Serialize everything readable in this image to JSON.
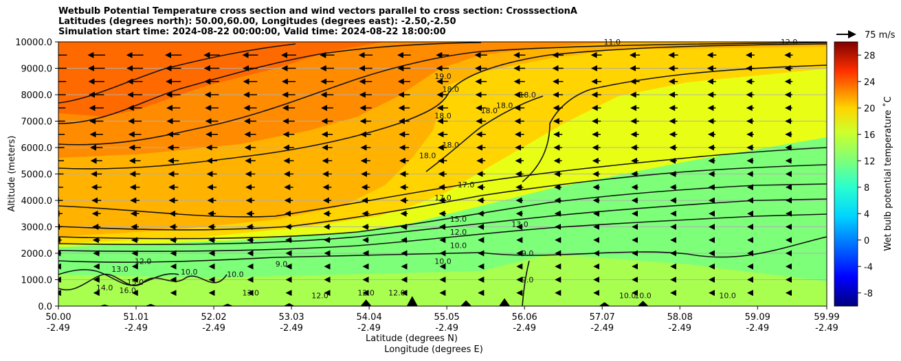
{
  "chart_data": {
    "type": "heatmap",
    "title_lines": [
      "Wetbulb Potential Temperature cross section and wind vectors parallel to cross section: CrosssectionA",
      "Latitudes (degrees north): 50.00,60.00, Longitudes (degrees east): -2.50,-2.50",
      "Simulation start time: 2024-08-22 00:00:00, Valid time: 2024-08-22 18:00:00"
    ],
    "xlabel_lines": [
      "Latitude (degrees N)",
      "Longitude (degrees E)"
    ],
    "ylabel": "Altitude (meters)",
    "x_ticks": [
      {
        "lat": "50.00",
        "lon": "-2.49"
      },
      {
        "lat": "51.01",
        "lon": "-2.49"
      },
      {
        "lat": "52.02",
        "lon": "-2.49"
      },
      {
        "lat": "53.03",
        "lon": "-2.49"
      },
      {
        "lat": "54.04",
        "lon": "-2.49"
      },
      {
        "lat": "55.05",
        "lon": "-2.49"
      },
      {
        "lat": "56.06",
        "lon": "-2.49"
      },
      {
        "lat": "57.07",
        "lon": "-2.49"
      },
      {
        "lat": "58.08",
        "lon": "-2.49"
      },
      {
        "lat": "59.09",
        "lon": "-2.49"
      },
      {
        "lat": "59.99",
        "lon": "-2.49"
      }
    ],
    "xlim": [
      50.0,
      59.99
    ],
    "y_ticks": [
      "0.0",
      "1000.0",
      "2000.0",
      "3000.0",
      "4000.0",
      "5000.0",
      "6000.0",
      "7000.0",
      "8000.0",
      "9000.0",
      "10000.0"
    ],
    "ylim": [
      0,
      10000
    ],
    "grid": "horizontal",
    "colorbar": {
      "label": "Wet bulb potential temperature ˚C",
      "ticks": [
        "-8",
        "-4",
        "0",
        "4",
        "8",
        "12",
        "16",
        "20",
        "24",
        "28"
      ],
      "range": [
        -10,
        30
      ],
      "colormap": "jet"
    },
    "quiver_key": "75 m/s",
    "contour_labels": [
      {
        "text": "19.0",
        "lat": 55.0,
        "alt": 8600
      },
      {
        "text": "18.0",
        "lat": 55.1,
        "alt": 8100
      },
      {
        "text": "18.0",
        "lat": 55.0,
        "alt": 7100
      },
      {
        "text": "18.0",
        "lat": 55.8,
        "alt": 7500
      },
      {
        "text": "18.0",
        "lat": 55.6,
        "alt": 7300
      },
      {
        "text": "18.0",
        "lat": 56.1,
        "alt": 7900
      },
      {
        "text": "18.0",
        "lat": 55.1,
        "alt": 6000
      },
      {
        "text": "18.0",
        "lat": 54.8,
        "alt": 5600
      },
      {
        "text": "17.0",
        "lat": 55.3,
        "alt": 4500
      },
      {
        "text": "17.0",
        "lat": 55.0,
        "alt": 4000
      },
      {
        "text": "15.0",
        "lat": 55.2,
        "alt": 3200
      },
      {
        "text": "13.0",
        "lat": 56.0,
        "alt": 3000
      },
      {
        "text": "12.0",
        "lat": 55.2,
        "alt": 2700
      },
      {
        "text": "10.0",
        "lat": 55.2,
        "alt": 2200
      },
      {
        "text": "10.0",
        "lat": 55.0,
        "alt": 1600
      },
      {
        "text": "9.0",
        "lat": 56.1,
        "alt": 1900
      },
      {
        "text": "9.0",
        "lat": 56.1,
        "alt": 900
      },
      {
        "text": "12.0",
        "lat": 51.1,
        "alt": 1600
      },
      {
        "text": "16.0",
        "lat": 50.9,
        "alt": 500
      },
      {
        "text": "14.0",
        "lat": 50.6,
        "alt": 600
      },
      {
        "text": "13.0",
        "lat": 50.8,
        "alt": 1300
      },
      {
        "text": "15.0",
        "lat": 51.0,
        "alt": 800
      },
      {
        "text": "10.0",
        "lat": 51.7,
        "alt": 1200
      },
      {
        "text": "10.0",
        "lat": 52.3,
        "alt": 1100
      },
      {
        "text": "9.0",
        "lat": 52.9,
        "alt": 1500
      },
      {
        "text": "13.0",
        "lat": 52.5,
        "alt": 400
      },
      {
        "text": "12.0",
        "lat": 53.4,
        "alt": 300
      },
      {
        "text": "12.0",
        "lat": 54.0,
        "alt": 400
      },
      {
        "text": "12.0",
        "lat": 54.4,
        "alt": 400
      },
      {
        "text": "10.0",
        "lat": 57.4,
        "alt": 300
      },
      {
        "text": "10.0",
        "lat": 57.6,
        "alt": 300
      },
      {
        "text": "10.0",
        "lat": 58.7,
        "alt": 300
      },
      {
        "text": "11.0",
        "lat": 57.2,
        "alt": 9900
      },
      {
        "text": "12.0",
        "lat": 59.5,
        "alt": 9900
      }
    ],
    "terrain_peaks_m": [
      {
        "lat": 50.6,
        "alt": 60
      },
      {
        "lat": 51.2,
        "alt": 80
      },
      {
        "lat": 52.2,
        "alt": 90
      },
      {
        "lat": 53.0,
        "alt": 110
      },
      {
        "lat": 54.0,
        "alt": 250
      },
      {
        "lat": 54.6,
        "alt": 380
      },
      {
        "lat": 55.3,
        "alt": 220
      },
      {
        "lat": 55.8,
        "alt": 300
      },
      {
        "lat": 57.1,
        "alt": 150
      },
      {
        "lat": 57.6,
        "alt": 200
      }
    ]
  }
}
